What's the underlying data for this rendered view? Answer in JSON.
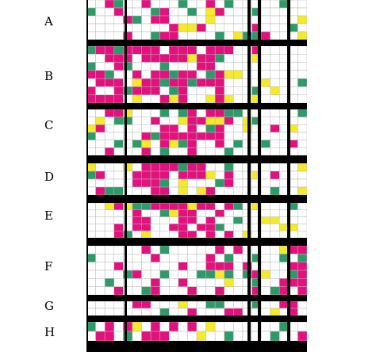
{
  "row_labels": [
    "A",
    "B",
    "C",
    "D",
    "E",
    "F",
    "G",
    "H"
  ],
  "colors": {
    "magenta": "#e2117e",
    "green": "#2e9a6a",
    "yellow": "#f4ea2a",
    "empty": "#ffffff",
    "gridline": "#b8b8b8",
    "separator": "#000000"
  },
  "chart_data": {
    "type": "heatmap",
    "categories": [
      "magenta",
      "green",
      "yellow",
      "empty"
    ],
    "groups": [
      {
        "label": "A",
        "row_count": 5
      },
      {
        "label": "B",
        "row_count": 7
      },
      {
        "label": "C",
        "row_count": 6
      },
      {
        "label": "D",
        "row_count": 4
      },
      {
        "label": "E",
        "row_count": 5
      },
      {
        "label": "F",
        "row_count": 6
      },
      {
        "label": "G",
        "row_count": 2
      },
      {
        "label": "H",
        "row_count": 2
      }
    ],
    "column_count": 24
  }
}
